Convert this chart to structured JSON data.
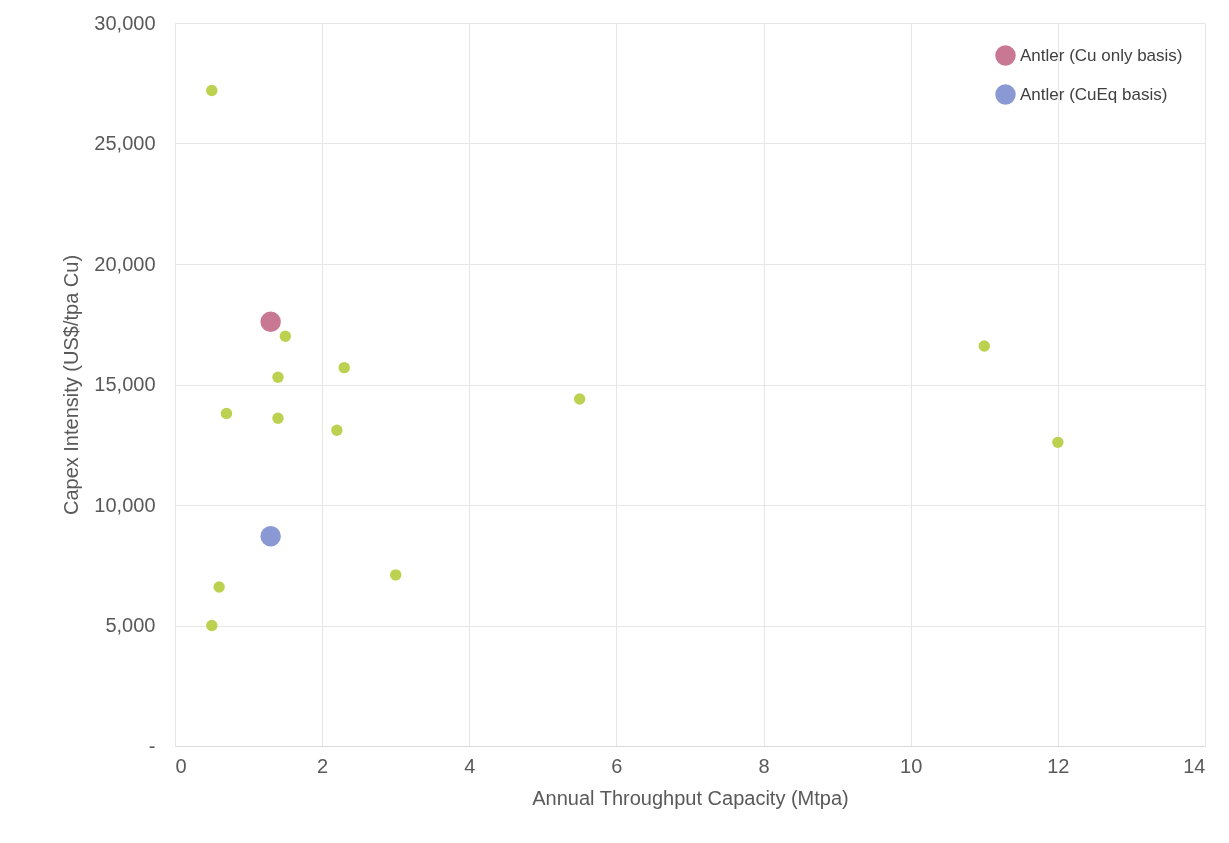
{
  "chart_data": {
    "type": "scatter",
    "xlabel": "Annual Throughput Capacity (Mtpa)",
    "ylabel": "Capex Intensity (US$/tpa Cu)",
    "xlim": [
      0,
      14
    ],
    "xticks": [
      0,
      2,
      4,
      6,
      8,
      10,
      12,
      14
    ],
    "ylim": [
      0,
      30000
    ],
    "yticks": [
      {
        "value": 0,
        "label": "-"
      },
      {
        "value": 5000,
        "label": "5,000"
      },
      {
        "value": 10000,
        "label": "10,000"
      },
      {
        "value": 15000,
        "label": "15,000"
      },
      {
        "value": 20000,
        "label": "20,000"
      },
      {
        "value": 25000,
        "label": "25,000"
      },
      {
        "value": 30000,
        "label": "30,000"
      }
    ],
    "grid": true,
    "legend": "top right",
    "marker": "circle",
    "series": [
      {
        "color": "#bdd151",
        "x": [
          0.5,
          1.5,
          1.4,
          2.3,
          0.7,
          1.4,
          2.2,
          5.5,
          11,
          12,
          3,
          0.6,
          0.5
        ],
        "values": [
          27200,
          17000,
          15300,
          15700,
          13800,
          13600,
          13100,
          14400,
          16600,
          12600,
          7100,
          6600,
          5000
        ]
      },
      {
        "name": "Antler (Cu only basis)",
        "color": "#c87893",
        "x": [
          1.3
        ],
        "values": [
          17600
        ]
      },
      {
        "name": "Antler (CuEq basis)",
        "color": "#8a98d4",
        "x": [
          1.3
        ],
        "values": [
          8700
        ]
      }
    ]
  }
}
